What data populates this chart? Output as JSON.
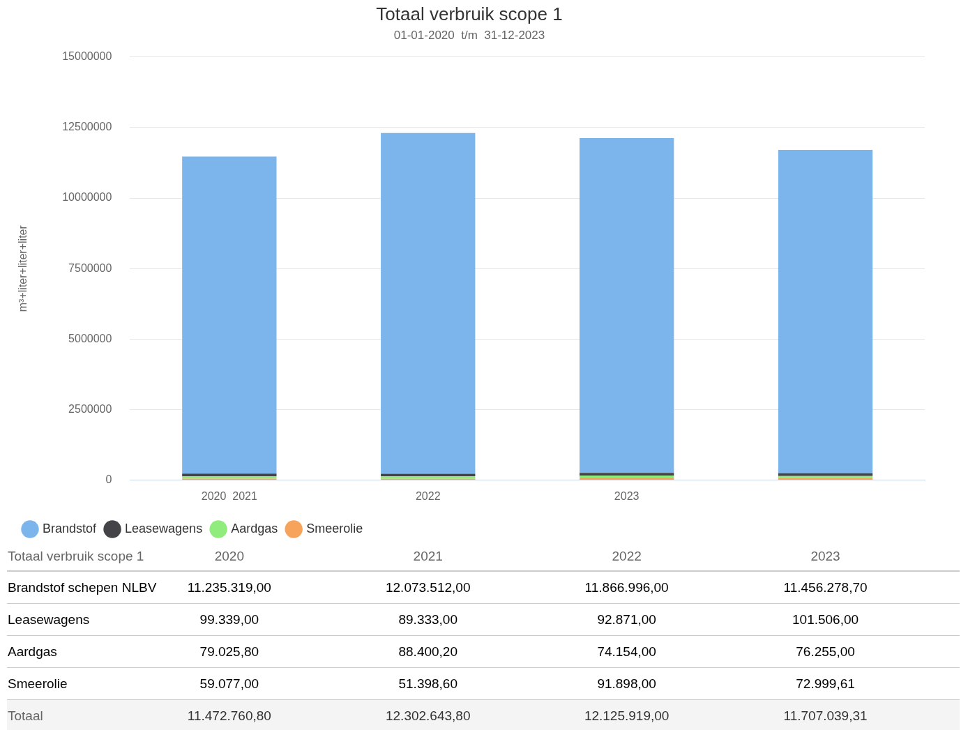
{
  "chart_data": {
    "type": "bar",
    "title": "Totaal verbruik scope 1",
    "subtitle": "01-01-2020  t/m  31-12-2023",
    "ylabel": "m³+liter+liter+liter",
    "categories": [
      "2020  2021",
      "2022",
      "2023",
      null
    ],
    "stacked": true,
    "series": [
      {
        "name": "Smeerolie",
        "color": "#f7a35c",
        "values": [
          59077,
          51398.6,
          91898,
          72999.61
        ],
        "value_labels": [
          "59.077,00",
          "51.398,60",
          "91.898,00",
          "72.999,61"
        ]
      },
      {
        "name": "Aardgas",
        "color": "#90ed7d",
        "values": [
          79025.8,
          88400.2,
          74154,
          76255
        ],
        "value_labels": [
          "79.025,80",
          "88.400,20",
          "74.154,00",
          "76.255,00"
        ]
      },
      {
        "name": "Leasewagens",
        "color": "#434348",
        "values": [
          99339,
          89333,
          92871,
          101506
        ],
        "value_labels": [
          "99.339,00",
          "89.333,00",
          "92.871,00",
          "101.506,00"
        ]
      },
      {
        "name": "Brandstof",
        "color": "#7cb5ec",
        "values": [
          11235319,
          12073512,
          11866996,
          11456278.7
        ],
        "value_labels": [
          "11.235.319,00",
          "12.073.512,00",
          "11.866.996,00",
          "11.456.278,70"
        ]
      }
    ],
    "annotations": [
      "Totaal verbruik scope 1",
      "2020",
      "2021",
      "2022",
      "2023",
      "Brandstof schepen NLBV",
      "Totaal",
      "11.472.760,80",
      "12.302.643,80",
      "12.125.919,00",
      "11.707.039,31"
    ],
    "ylim": [
      0,
      15000000
    ],
    "yticks": [
      0,
      2500000,
      5000000,
      7500000,
      10000000,
      12500000,
      15000000
    ],
    "grid": "y",
    "legend": "bottom left"
  }
}
